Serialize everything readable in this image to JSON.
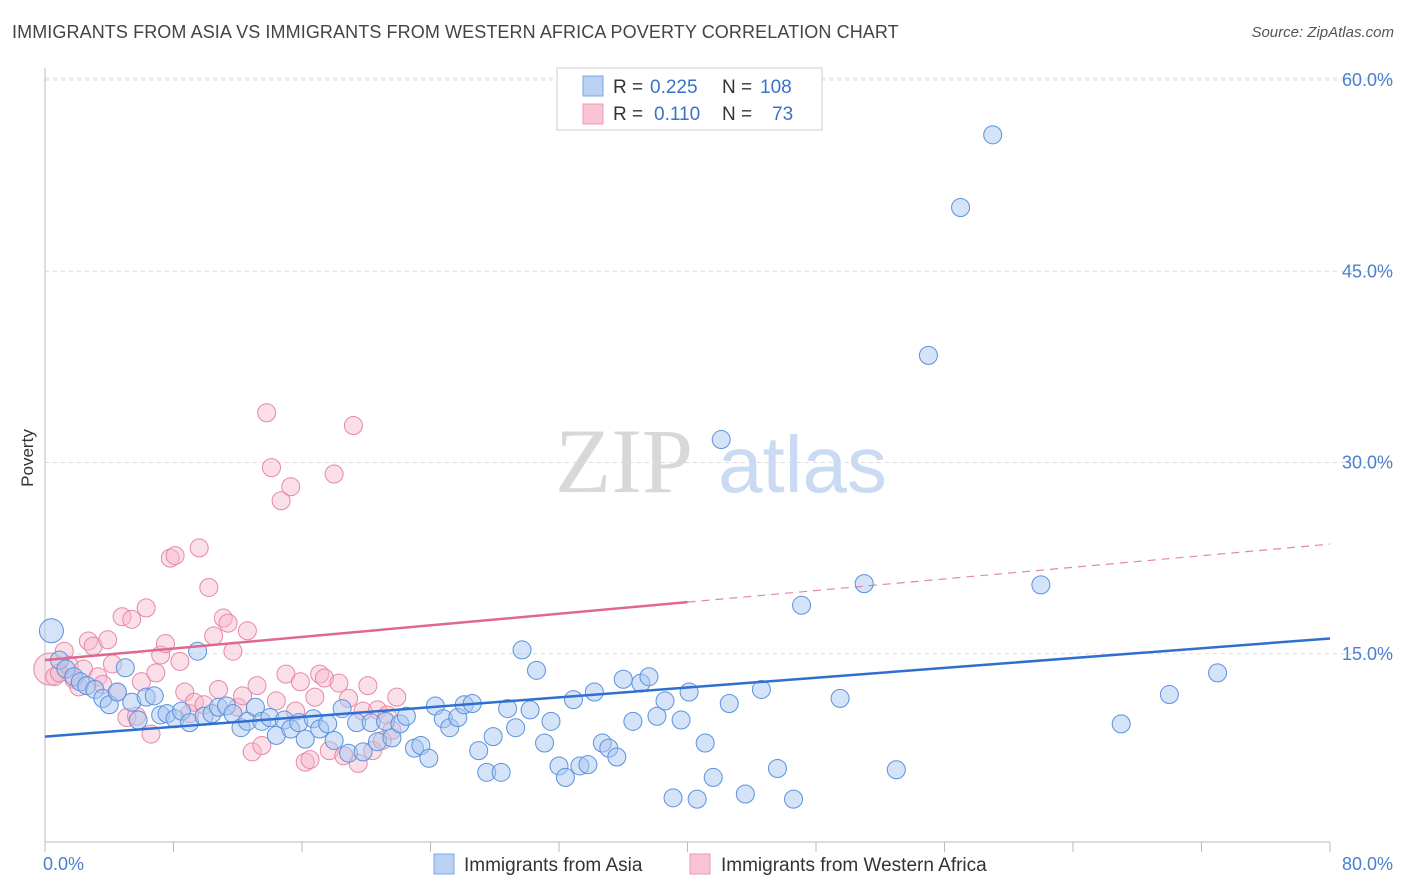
{
  "title": "IMMIGRANTS FROM ASIA VS IMMIGRANTS FROM WESTERN AFRICA POVERTY CORRELATION CHART",
  "source": "Source: ZipAtlas.com",
  "watermark": {
    "zip": "ZIP",
    "atlas": "atlas"
  },
  "colors": {
    "asia_fill": "#a9c8f0",
    "asia_stroke": "#5b92dd",
    "asia_line": "#2f6fcf",
    "africa_fill": "#f6b8cc",
    "africa_stroke": "#e688a8",
    "africa_line": "#e0688f",
    "tick_text": "#4a7fd0",
    "grid": "#dddddd"
  },
  "legend": {
    "rows": [
      {
        "r_label": "R =",
        "r_value": "0.225",
        "n_label": "N =",
        "n_value": "108"
      },
      {
        "r_label": "R =",
        "r_value": "0.110",
        "n_label": "N =",
        "n_value": "73"
      }
    ]
  },
  "chart_data": {
    "type": "scatter",
    "title": "IMMIGRANTS FROM ASIA VS IMMIGRANTS FROM WESTERN AFRICA POVERTY CORRELATION CHART",
    "xlabel": "",
    "ylabel": "Poverty",
    "xlim": [
      0,
      80
    ],
    "ylim": [
      0,
      60
    ],
    "x_ticks": [
      "0.0%",
      "80.0%"
    ],
    "y_ticks": [
      {
        "value": 15,
        "label": "15.0%"
      },
      {
        "value": 30,
        "label": "30.0%"
      },
      {
        "value": 45,
        "label": "45.0%"
      },
      {
        "value": 60,
        "label": "60.0%"
      }
    ],
    "grid": true,
    "legend_position": "bottom",
    "series": [
      {
        "name": "Immigrants from Asia",
        "trend": {
          "x0": 0,
          "y0": 8.5,
          "x1": 80,
          "y1": 16.2,
          "dashed_from": null
        },
        "points": [
          [
            0.4,
            16.8
          ],
          [
            0.9,
            14.5
          ],
          [
            1.3,
            13.8
          ],
          [
            1.8,
            13.2
          ],
          [
            2.2,
            12.8
          ],
          [
            2.6,
            12.5
          ],
          [
            3.1,
            12.2
          ],
          [
            3.6,
            11.5
          ],
          [
            4.0,
            11.0
          ],
          [
            4.5,
            12.0
          ],
          [
            5.0,
            13.9
          ],
          [
            5.4,
            11.2
          ],
          [
            5.8,
            9.8
          ],
          [
            6.3,
            11.6
          ],
          [
            6.8,
            11.7
          ],
          [
            7.2,
            10.2
          ],
          [
            7.6,
            10.3
          ],
          [
            8.1,
            9.9
          ],
          [
            8.5,
            10.5
          ],
          [
            9.0,
            9.6
          ],
          [
            9.5,
            15.2
          ],
          [
            9.9,
            10.1
          ],
          [
            10.4,
            10.3
          ],
          [
            10.8,
            10.8
          ],
          [
            11.3,
            10.9
          ],
          [
            11.7,
            10.3
          ],
          [
            12.2,
            9.2
          ],
          [
            12.6,
            9.7
          ],
          [
            13.1,
            10.8
          ],
          [
            13.5,
            9.7
          ],
          [
            14.0,
            10.0
          ],
          [
            14.4,
            8.6
          ],
          [
            14.9,
            9.8
          ],
          [
            15.3,
            9.1
          ],
          [
            15.8,
            9.6
          ],
          [
            16.2,
            8.3
          ],
          [
            16.7,
            9.9
          ],
          [
            17.1,
            9.1
          ],
          [
            17.6,
            9.5
          ],
          [
            18.0,
            8.2
          ],
          [
            18.5,
            10.7
          ],
          [
            18.9,
            7.2
          ],
          [
            19.4,
            9.6
          ],
          [
            19.8,
            7.3
          ],
          [
            20.3,
            9.6
          ],
          [
            20.7,
            8.1
          ],
          [
            21.2,
            9.7
          ],
          [
            21.6,
            8.4
          ],
          [
            22.1,
            9.5
          ],
          [
            22.5,
            10.1
          ],
          [
            23.0,
            7.6
          ],
          [
            23.4,
            7.8
          ],
          [
            23.9,
            6.8
          ],
          [
            24.3,
            10.9
          ],
          [
            24.8,
            9.9
          ],
          [
            25.2,
            9.2
          ],
          [
            25.7,
            10.0
          ],
          [
            26.1,
            11.0
          ],
          [
            26.6,
            11.1
          ],
          [
            27.0,
            7.4
          ],
          [
            27.5,
            5.7
          ],
          [
            27.9,
            8.5
          ],
          [
            28.4,
            5.7
          ],
          [
            28.8,
            10.7
          ],
          [
            29.3,
            9.2
          ],
          [
            29.7,
            15.3
          ],
          [
            30.2,
            10.6
          ],
          [
            30.6,
            13.7
          ],
          [
            31.1,
            8.0
          ],
          [
            31.5,
            9.7
          ],
          [
            32.0,
            6.2
          ],
          [
            32.4,
            5.3
          ],
          [
            32.9,
            11.4
          ],
          [
            33.3,
            6.2
          ],
          [
            33.8,
            6.3
          ],
          [
            34.2,
            12.0
          ],
          [
            34.7,
            8.0
          ],
          [
            35.1,
            7.6
          ],
          [
            35.6,
            6.9
          ],
          [
            36.0,
            13.0
          ],
          [
            36.6,
            9.7
          ],
          [
            37.1,
            12.7
          ],
          [
            37.6,
            13.2
          ],
          [
            38.1,
            10.1
          ],
          [
            38.6,
            11.3
          ],
          [
            39.1,
            3.7
          ],
          [
            39.6,
            9.8
          ],
          [
            40.1,
            12.0
          ],
          [
            40.6,
            3.6
          ],
          [
            41.1,
            8.0
          ],
          [
            41.6,
            5.3
          ],
          [
            42.1,
            31.8
          ],
          [
            42.6,
            11.1
          ],
          [
            43.6,
            4.0
          ],
          [
            44.6,
            12.2
          ],
          [
            45.6,
            6.0
          ],
          [
            46.6,
            3.6
          ],
          [
            47.1,
            18.8
          ],
          [
            49.5,
            11.5
          ],
          [
            51.0,
            20.5
          ],
          [
            53.0,
            5.9
          ],
          [
            55.0,
            38.4
          ],
          [
            57.0,
            50.0
          ],
          [
            59.0,
            55.7
          ],
          [
            62.0,
            20.4
          ],
          [
            67.0,
            9.5
          ],
          [
            70.0,
            11.8
          ],
          [
            73.0,
            13.5
          ]
        ]
      },
      {
        "name": "Immigrants from Western Africa",
        "trend": {
          "x0": 0,
          "y0": 14.5,
          "x1": 80,
          "y1": 23.6,
          "dashed_from": 40
        },
        "points": [
          [
            0.3,
            13.8
          ],
          [
            0.6,
            13.2
          ],
          [
            0.9,
            13.5
          ],
          [
            1.2,
            15.2
          ],
          [
            1.5,
            14.1
          ],
          [
            1.8,
            13.0
          ],
          [
            2.1,
            12.4
          ],
          [
            2.4,
            13.8
          ],
          [
            2.7,
            16.0
          ],
          [
            3.0,
            15.6
          ],
          [
            3.3,
            13.2
          ],
          [
            3.6,
            12.6
          ],
          [
            3.9,
            16.1
          ],
          [
            4.2,
            14.2
          ],
          [
            4.5,
            12.0
          ],
          [
            4.8,
            17.9
          ],
          [
            5.1,
            10.0
          ],
          [
            5.4,
            17.7
          ],
          [
            5.7,
            10.1
          ],
          [
            6.0,
            12.8
          ],
          [
            6.3,
            18.6
          ],
          [
            6.6,
            8.7
          ],
          [
            6.9,
            13.5
          ],
          [
            7.2,
            14.9
          ],
          [
            7.5,
            15.8
          ],
          [
            7.8,
            22.5
          ],
          [
            8.1,
            22.7
          ],
          [
            8.4,
            14.4
          ],
          [
            8.7,
            12.0
          ],
          [
            9.0,
            10.3
          ],
          [
            9.3,
            11.2
          ],
          [
            9.6,
            23.3
          ],
          [
            9.9,
            11.0
          ],
          [
            10.2,
            20.2
          ],
          [
            10.5,
            16.4
          ],
          [
            10.8,
            12.2
          ],
          [
            11.1,
            17.8
          ],
          [
            11.4,
            17.4
          ],
          [
            11.7,
            15.2
          ],
          [
            12.0,
            10.8
          ],
          [
            12.3,
            11.7
          ],
          [
            12.6,
            16.8
          ],
          [
            12.9,
            7.3
          ],
          [
            13.2,
            12.5
          ],
          [
            13.5,
            7.8
          ],
          [
            13.8,
            33.9
          ],
          [
            14.1,
            29.6
          ],
          [
            14.4,
            11.3
          ],
          [
            14.7,
            27.0
          ],
          [
            15.0,
            13.4
          ],
          [
            15.3,
            28.1
          ],
          [
            15.6,
            10.5
          ],
          [
            15.9,
            12.8
          ],
          [
            16.2,
            6.5
          ],
          [
            16.5,
            6.7
          ],
          [
            16.8,
            11.6
          ],
          [
            17.1,
            13.4
          ],
          [
            17.4,
            13.1
          ],
          [
            17.7,
            7.4
          ],
          [
            18.0,
            29.1
          ],
          [
            18.3,
            12.7
          ],
          [
            18.6,
            7.0
          ],
          [
            18.9,
            11.5
          ],
          [
            19.2,
            32.9
          ],
          [
            19.5,
            6.4
          ],
          [
            19.8,
            10.5
          ],
          [
            20.1,
            12.5
          ],
          [
            20.4,
            7.4
          ],
          [
            20.7,
            10.6
          ],
          [
            21.0,
            8.2
          ],
          [
            21.3,
            10.2
          ],
          [
            21.6,
            9.0
          ],
          [
            21.9,
            11.6
          ]
        ]
      }
    ]
  },
  "bottom_legend": {
    "items": [
      {
        "label": "Immigrants from Asia"
      },
      {
        "label": "Immigrants from Western Africa"
      }
    ]
  }
}
